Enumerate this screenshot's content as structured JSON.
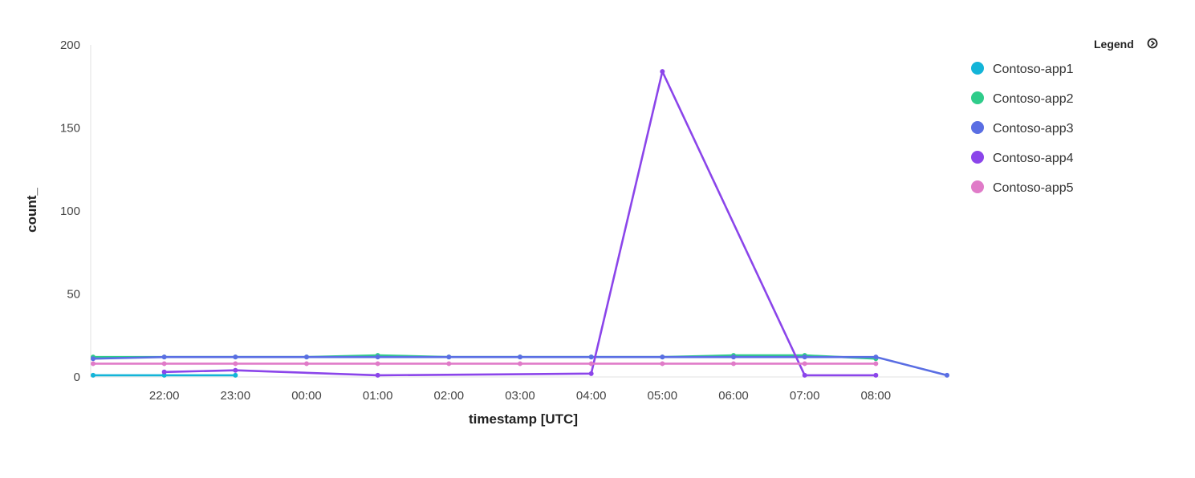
{
  "chart_data": {
    "type": "line",
    "xlabel": "timestamp [UTC]",
    "ylabel": "count_",
    "ylim": [
      0,
      200
    ],
    "yticks": [
      "0",
      "50",
      "100",
      "150",
      "200"
    ],
    "x": [
      "21:00",
      "22:00",
      "23:00",
      "00:00",
      "01:00",
      "02:00",
      "03:00",
      "04:00",
      "05:00",
      "06:00",
      "07:00",
      "08:00",
      "09:00"
    ],
    "xtick_labels": [
      "22:00",
      "23:00",
      "00:00",
      "01:00",
      "02:00",
      "03:00",
      "04:00",
      "05:00",
      "06:00",
      "07:00",
      "08:00"
    ],
    "grid": false,
    "legend": {
      "title": "Legend",
      "placement": "top-right"
    },
    "series": [
      {
        "name": "Contoso-app1",
        "color": "#13b4d8",
        "values": [
          1,
          1,
          1,
          null,
          null,
          null,
          null,
          null,
          null,
          null,
          null,
          null,
          null
        ]
      },
      {
        "name": "Contoso-app2",
        "color": "#2fcc8a",
        "values": [
          12,
          12,
          12,
          12,
          13,
          12,
          12,
          12,
          12,
          13,
          13,
          11,
          null
        ]
      },
      {
        "name": "Contoso-app3",
        "color": "#5a6ee3",
        "values": [
          11,
          12,
          12,
          12,
          12,
          12,
          12,
          12,
          12,
          12,
          12,
          12,
          1
        ]
      },
      {
        "name": "Contoso-app4",
        "color": "#8b45ea",
        "values": [
          null,
          3,
          4,
          null,
          1,
          null,
          null,
          2,
          184,
          null,
          1,
          1,
          null
        ]
      },
      {
        "name": "Contoso-app5",
        "color": "#e07bc8",
        "values": [
          8,
          8,
          8,
          8,
          8,
          8,
          8,
          8,
          8,
          8,
          8,
          8,
          null
        ]
      }
    ]
  }
}
